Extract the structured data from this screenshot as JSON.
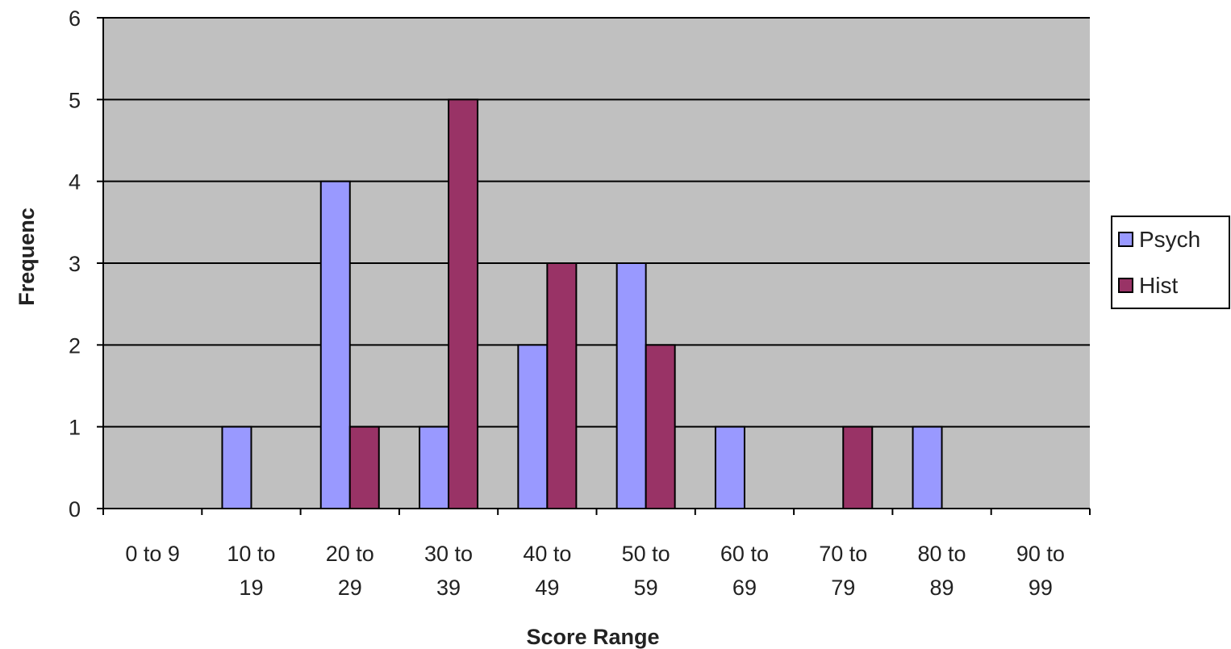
{
  "chart_data": {
    "type": "bar",
    "categories": [
      [
        "0 to 9"
      ],
      [
        "10 to",
        "19"
      ],
      [
        "20 to",
        "29"
      ],
      [
        "30 to",
        "39"
      ],
      [
        "40 to",
        "49"
      ],
      [
        "50 to",
        "59"
      ],
      [
        "60 to",
        "69"
      ],
      [
        "70 to",
        "79"
      ],
      [
        "80 to",
        "89"
      ],
      [
        "90 to",
        "99"
      ]
    ],
    "series": [
      {
        "name": "Psych",
        "color": "#9999ff",
        "values": [
          0,
          1,
          4,
          1,
          2,
          3,
          1,
          0,
          1,
          0
        ]
      },
      {
        "name": "Hist",
        "color": "#993366",
        "values": [
          0,
          0,
          1,
          5,
          3,
          2,
          0,
          1,
          0,
          0
        ]
      }
    ],
    "xlabel": "Score Range",
    "ylabel": "Frequenc",
    "ylim": [
      0,
      6
    ],
    "yticks": [
      0,
      1,
      2,
      3,
      4,
      5,
      6
    ],
    "grid": true,
    "plot_background": "#c0c0c0",
    "legend_position": "right"
  }
}
